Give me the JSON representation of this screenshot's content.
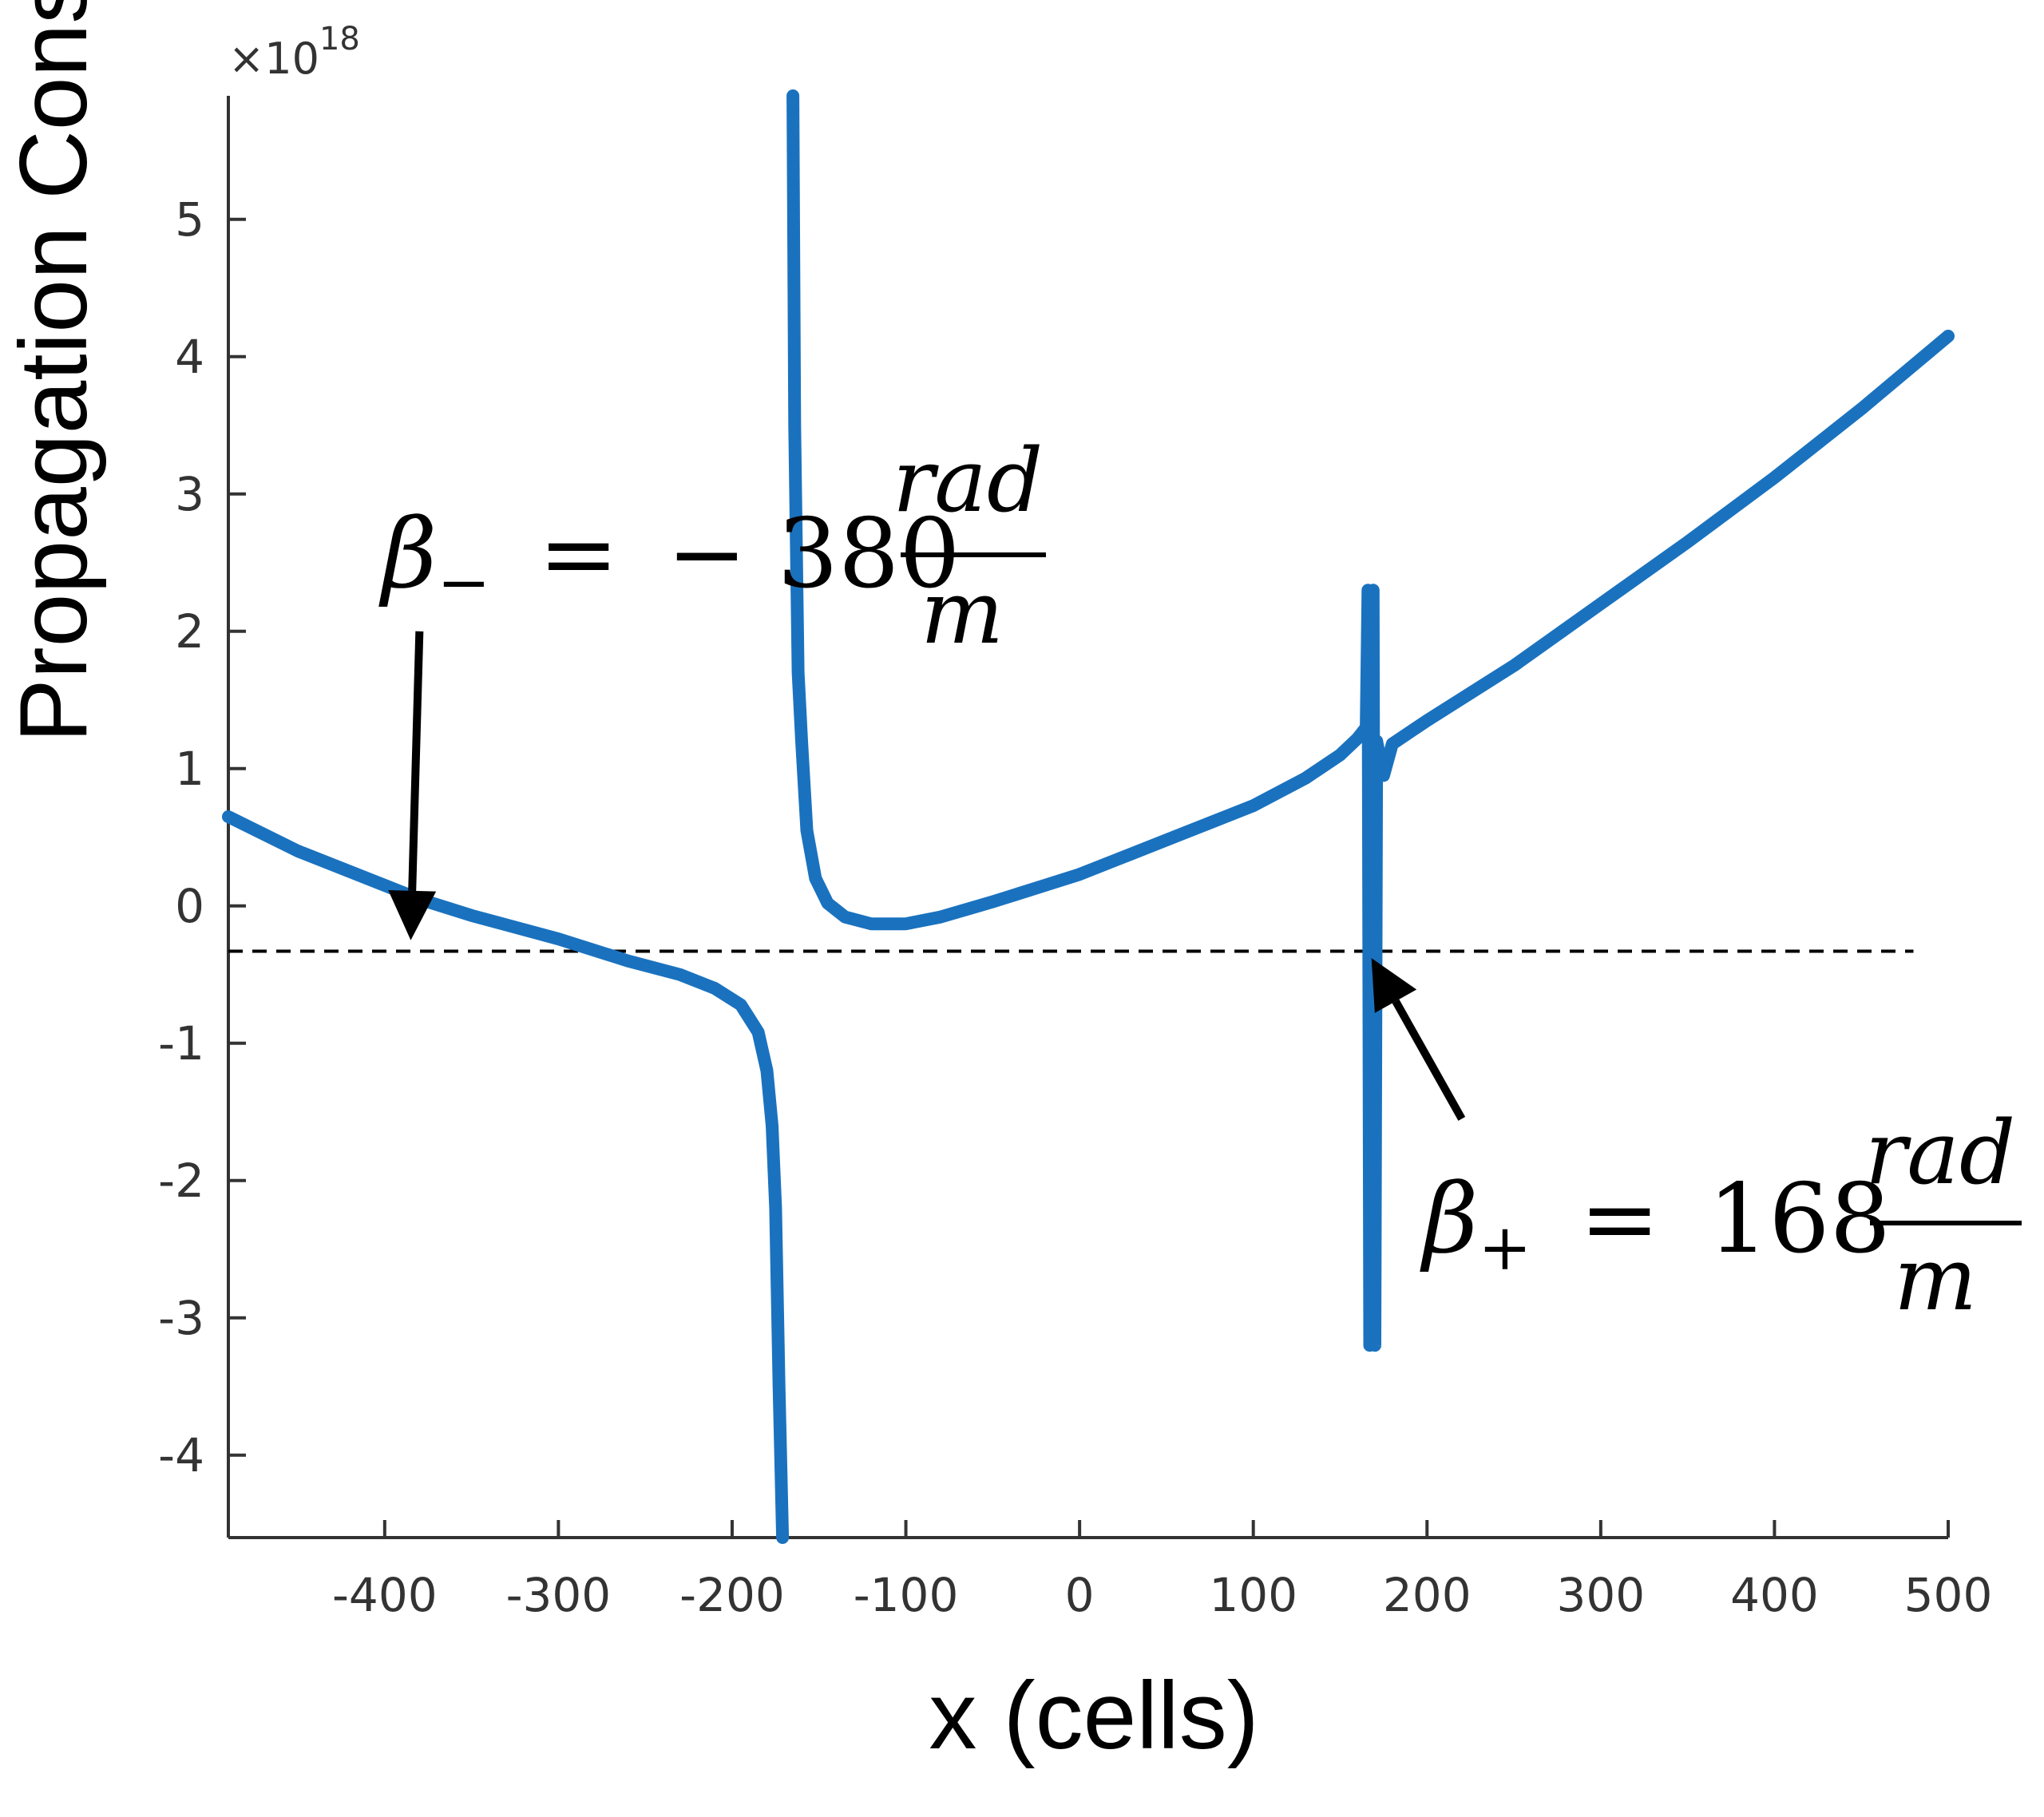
{
  "chart_data": {
    "type": "line",
    "xlabel": "x (cells)",
    "ylabel": "Propagation Constant",
    "y_exponent": {
      "base": "×10",
      "power": "18"
    },
    "xlim": [
      -490,
      500
    ],
    "ylim": [
      -4.6,
      5.9
    ],
    "x_ticks": [
      "-400",
      "-300",
      "-200",
      "-100",
      "0",
      "100",
      "200",
      "300",
      "400",
      "500"
    ],
    "y_ticks": [
      "5",
      "4",
      "3",
      "2",
      "1",
      "0",
      "-1",
      "-2",
      "-3",
      "-4"
    ],
    "grid": false,
    "line_color": "#1a72bf",
    "reference_line": {
      "y": -0.33,
      "x_range": [
        -490,
        480
      ],
      "style": "dashed",
      "color": "#000000"
    },
    "series": [
      {
        "segments": [
          {
            "x": [
              -490,
              -450,
              -400,
              -380,
              -350,
              -300,
              -260,
              -230,
              -210,
              -195,
              -185,
              -180,
              -177,
              -175,
              -173,
              -171
            ],
            "y": [
              0.65,
              0.4,
              0.15,
              0.05,
              -0.07,
              -0.24,
              -0.4,
              -0.5,
              -0.6,
              -0.72,
              -0.92,
              -1.2,
              -1.6,
              -2.2,
              -3.5,
              -4.6
            ]
          },
          {
            "x": [
              -165,
              -164,
              -162,
              -160,
              -157,
              -152,
              -145,
              -135,
              -120,
              -100,
              -80,
              -50,
              -20,
              0,
              30,
              60,
              100,
              130,
              150,
              160,
              165
            ],
            "y": [
              5.9,
              3.5,
              1.7,
              1.2,
              0.55,
              0.2,
              0.02,
              -0.08,
              -0.13,
              -0.13,
              -0.08,
              0.03,
              0.15,
              0.23,
              0.38,
              0.53,
              0.73,
              0.93,
              1.1,
              1.22,
              1.3
            ]
          },
          {
            "x": [
              165,
              166,
              167,
              168,
              169,
              170,
              171
            ],
            "y": [
              1.3,
              2.3,
              -3.2,
              1.3,
              2.3,
              -3.2,
              1.2
            ]
          },
          {
            "x": [
              171,
              175,
              180,
              200,
              250,
              300,
              350,
              400,
              450,
              500
            ],
            "y": [
              1.2,
              0.95,
              1.18,
              1.35,
              1.75,
              2.2,
              2.65,
              3.12,
              3.62,
              4.15
            ]
          }
        ]
      }
    ],
    "annotations": [
      {
        "beta_symbol": "β",
        "sub": "−",
        "equals": "=",
        "value": "− 380",
        "numerator": "rad",
        "denominator": "m",
        "arrow_from": [
          -380,
          2.0
        ],
        "arrow_to": [
          -385,
          -0.25
        ]
      },
      {
        "beta_symbol": "β",
        "sub": "+",
        "equals": "=",
        "value": "168",
        "numerator": "rad",
        "denominator": "m",
        "arrow_from": [
          220,
          -1.55
        ],
        "arrow_to": [
          168,
          -0.38
        ]
      }
    ]
  }
}
